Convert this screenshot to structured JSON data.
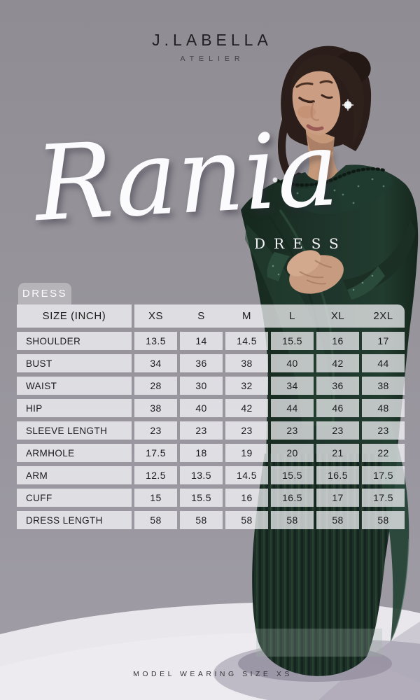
{
  "brand": {
    "name": "J.LABELLA",
    "tagline": "ATELIER"
  },
  "product": {
    "name": "Rania",
    "type": "DRESS"
  },
  "tab_label": "DRESS",
  "size_chart": {
    "unit_header": "SIZE (INCH)",
    "header": [
      "SIZE (INCH)",
      "XS",
      "S",
      "M",
      "L",
      "XL",
      "2XL"
    ],
    "rows": [
      {
        "label": "SHOULDER",
        "values": [
          "13.5",
          "14",
          "14.5",
          "15.5",
          "16",
          "17"
        ]
      },
      {
        "label": "BUST",
        "values": [
          "34",
          "36",
          "38",
          "40",
          "42",
          "44"
        ]
      },
      {
        "label": "WAIST",
        "values": [
          "28",
          "30",
          "32",
          "34",
          "36",
          "38"
        ]
      },
      {
        "label": "HIP",
        "values": [
          "38",
          "40",
          "42",
          "44",
          "46",
          "48"
        ]
      },
      {
        "label": "SLEEVE LENGTH",
        "values": [
          "23",
          "23",
          "23",
          "23",
          "23",
          "23"
        ]
      },
      {
        "label": "ARMHOLE",
        "values": [
          "17.5",
          "18",
          "19",
          "20",
          "21",
          "22"
        ]
      },
      {
        "label": "ARM",
        "values": [
          "12.5",
          "13.5",
          "14.5",
          "15.5",
          "16.5",
          "17.5"
        ]
      },
      {
        "label": "CUFF",
        "values": [
          "15",
          "15.5",
          "16",
          "16.5",
          "17",
          "17.5"
        ]
      },
      {
        "label": "DRESS LENGTH",
        "values": [
          "58",
          "58",
          "58",
          "58",
          "58",
          "58"
        ]
      }
    ]
  },
  "footer": {
    "note": "MODEL WEARING SIZE XS"
  },
  "colors": {
    "background_gray": "#96939A",
    "floor_white": "#E9E7EC",
    "dress_green": "#1D3228",
    "table_cell": "rgba(250,250,252,0.72)",
    "tab_background": "rgba(255,255,255,0.30)",
    "text_dark": "#1B1B1D",
    "text_white": "#FBFBFD"
  }
}
